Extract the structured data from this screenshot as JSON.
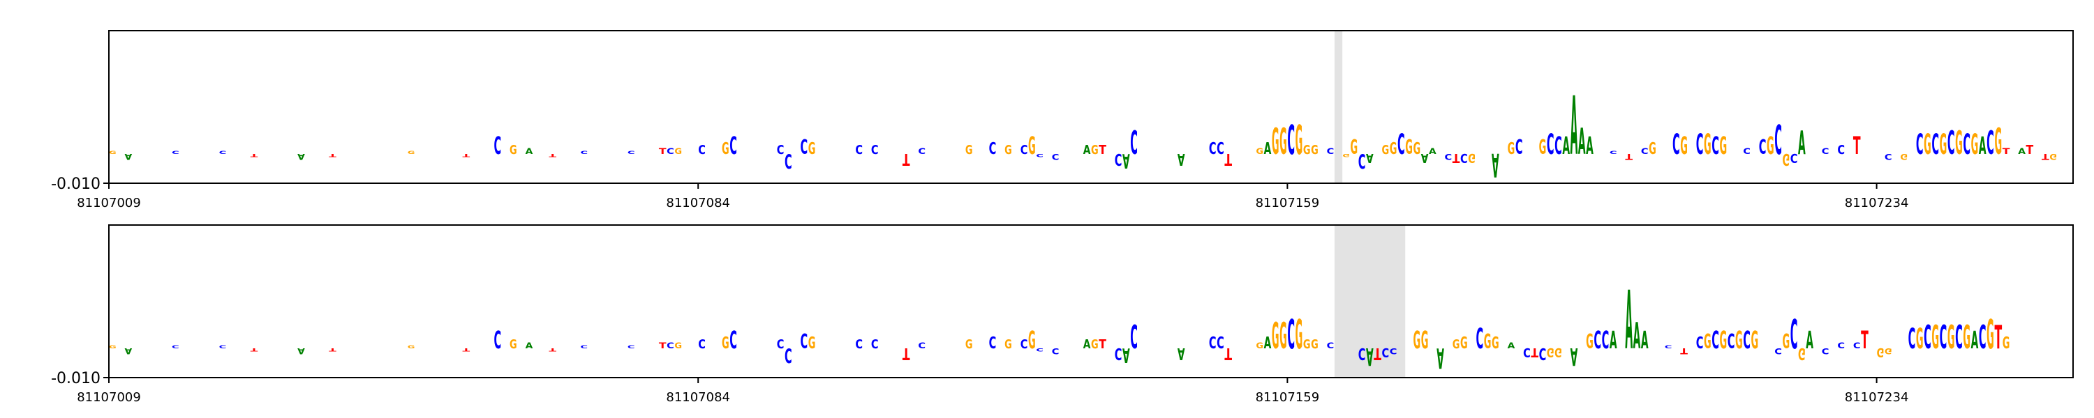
{
  "chart_data": [
    {
      "type": "logo",
      "xlim": [
        81107009,
        81107259
      ],
      "xticks": [
        81107009,
        81107084,
        81107159,
        81107234
      ],
      "ylim": [
        -0.01,
        0.042
      ],
      "yticks": [
        {
          "value": -0.01,
          "label": "-0.010"
        }
      ],
      "highlight": [
        81107165,
        81107166
      ],
      "colors": {
        "A": "#008000",
        "C": "#0000ff",
        "G": "#ffa500",
        "T": "#ff0000"
      },
      "x": [
        81107009,
        81107011,
        81107017,
        81107023,
        81107027,
        81107033,
        81107037,
        81107047,
        81107054,
        81107058,
        81107060,
        81107062,
        81107065,
        81107069,
        81107075,
        81107079,
        81107080,
        81107081,
        81107084,
        81107087,
        81107088,
        81107094,
        81107095,
        81107097,
        81107098,
        81107104,
        81107106,
        81107110,
        81107112,
        81107118,
        81107121,
        81107123,
        81107125,
        81107126,
        81107127,
        81107129,
        81107133,
        81107134,
        81107135,
        81107137,
        81107138,
        81107139,
        81107145,
        81107149,
        81107150,
        81107151,
        81107155,
        81107156,
        81107157,
        81107158,
        81107159,
        81107160,
        81107161,
        81107162,
        81107164,
        81107166,
        81107167,
        81107168,
        81107169,
        81107171,
        81107172,
        81107173,
        81107174,
        81107175,
        81107176,
        81107177,
        81107179,
        81107180,
        81107181,
        81107182,
        81107185,
        81107187,
        81107188,
        81107191,
        81107192,
        81107193,
        81107194,
        81107195,
        81107196,
        81107197,
        81107200,
        81107202,
        81107204,
        81107205,
        81107208,
        81107209,
        81107211,
        81107212,
        81107213,
        81107214,
        81107217,
        81107219,
        81107220,
        81107221,
        81107222,
        81107223,
        81107224,
        81107227,
        81107229,
        81107231,
        81107235,
        81107237,
        81107239,
        81107240,
        81107241,
        81107242,
        81107243,
        81107244,
        81107245,
        81107246,
        81107247,
        81107248,
        81107249,
        81107250,
        81107252,
        81107253,
        81107255,
        81107256
      ],
      "letters": [
        "G",
        "A",
        "C",
        "C",
        "T",
        "A",
        "T",
        "G",
        "T",
        "C",
        "G",
        "A",
        "T",
        "C",
        "C",
        "T",
        "C",
        "G",
        "C",
        "G",
        "C",
        "C",
        "C",
        "C",
        "G",
        "C",
        "C",
        "T",
        "C",
        "G",
        "C",
        "G",
        "C",
        "G",
        "C",
        "C",
        "A",
        "G",
        "T",
        "C",
        "A",
        "C",
        "A",
        "C",
        "C",
        "T",
        "G",
        "A",
        "G",
        "G",
        "C",
        "G",
        "G",
        "G",
        "C",
        "G",
        "G",
        "C",
        "A",
        "G",
        "G",
        "C",
        "G",
        "G",
        "A",
        "A",
        "C",
        "T",
        "C",
        "G",
        "A",
        "G",
        "C",
        "G",
        "C",
        "C",
        "A",
        "A",
        "A",
        "A",
        "C",
        "T",
        "C",
        "G",
        "C",
        "G",
        "C",
        "G",
        "C",
        "G",
        "C",
        "C",
        "G",
        "C",
        "G",
        "C",
        "A",
        "C",
        "C",
        "T",
        "C",
        "G",
        "C",
        "G",
        "C",
        "G",
        "C",
        "G",
        "C",
        "G",
        "A",
        "C",
        "G",
        "T",
        "A",
        "T",
        "T",
        "G"
      ],
      "values": [
        0.001,
        -0.002,
        0.001,
        0.001,
        -0.001,
        -0.002,
        -0.001,
        0.001,
        -0.001,
        0.006,
        0.003,
        0.002,
        -0.001,
        0.001,
        0.001,
        0.002,
        0.002,
        0.002,
        0.003,
        0.004,
        0.006,
        0.003,
        -0.005,
        0.005,
        0.004,
        0.003,
        0.003,
        -0.004,
        0.002,
        0.003,
        0.004,
        0.003,
        0.003,
        0.006,
        -0.001,
        -0.002,
        0.003,
        0.003,
        0.003,
        -0.004,
        -0.005,
        0.008,
        -0.004,
        0.004,
        0.004,
        -0.004,
        0.002,
        0.004,
        0.009,
        0.009,
        0.01,
        0.01,
        0.003,
        0.003,
        0.002,
        -0.001,
        0.005,
        -0.005,
        -0.003,
        0.003,
        0.004,
        0.007,
        0.005,
        0.004,
        -0.003,
        0.002,
        -0.002,
        -0.003,
        -0.003,
        -0.003,
        -0.008,
        0.004,
        0.005,
        0.005,
        0.007,
        0.006,
        0.006,
        0.02,
        0.009,
        0.006,
        0.001,
        -0.002,
        0.002,
        0.004,
        0.007,
        0.006,
        0.007,
        0.007,
        0.006,
        0.006,
        0.002,
        0.005,
        0.006,
        0.01,
        -0.004,
        -0.003,
        0.008,
        0.002,
        0.003,
        0.006,
        -0.002,
        -0.002,
        0.007,
        0.007,
        0.007,
        0.007,
        0.008,
        0.008,
        0.007,
        0.007,
        0.006,
        0.008,
        0.009,
        0.002,
        0.002,
        0.003,
        -0.002,
        -0.002
      ]
    },
    {
      "type": "logo",
      "xlim": [
        81107009,
        81107259
      ],
      "xticks": [
        81107009,
        81107084,
        81107159,
        81107234
      ],
      "ylim": [
        -0.01,
        0.042
      ],
      "yticks": [
        {
          "value": -0.01,
          "label": "-0.010"
        }
      ],
      "highlight": [
        81107165,
        81107174
      ],
      "colors": {
        "A": "#008000",
        "C": "#0000ff",
        "G": "#ffa500",
        "T": "#ff0000"
      },
      "x": [
        81107009,
        81107011,
        81107017,
        81107023,
        81107027,
        81107033,
        81107037,
        81107047,
        81107054,
        81107058,
        81107060,
        81107062,
        81107065,
        81107069,
        81107075,
        81107079,
        81107080,
        81107081,
        81107084,
        81107087,
        81107088,
        81107094,
        81107095,
        81107097,
        81107098,
        81107104,
        81107106,
        81107110,
        81107112,
        81107118,
        81107121,
        81107123,
        81107125,
        81107126,
        81107127,
        81107129,
        81107133,
        81107134,
        81107135,
        81107137,
        81107138,
        81107139,
        81107145,
        81107149,
        81107150,
        81107151,
        81107155,
        81107156,
        81107157,
        81107158,
        81107159,
        81107160,
        81107161,
        81107162,
        81107164,
        81107168,
        81107169,
        81107170,
        81107171,
        81107172,
        81107175,
        81107176,
        81107178,
        81107180,
        81107181,
        81107183,
        81107184,
        81107185,
        81107187,
        81107189,
        81107190,
        81107191,
        81107192,
        81107193,
        81107195,
        81107197,
        81107198,
        81107199,
        81107200,
        81107202,
        81107203,
        81107204,
        81107207,
        81107209,
        81107211,
        81107212,
        81107213,
        81107214,
        81107215,
        81107216,
        81107217,
        81107218,
        81107221,
        81107222,
        81107223,
        81107224,
        81107225,
        81107227,
        81107229,
        81107231,
        81107232,
        81107234,
        81107235,
        81107238,
        81107239,
        81107240,
        81107241,
        81107242,
        81107243,
        81107244,
        81107245,
        81107246,
        81107247,
        81107248,
        81107249,
        81107250
      ],
      "letters": [
        "G",
        "A",
        "C",
        "C",
        "T",
        "A",
        "T",
        "G",
        "T",
        "C",
        "G",
        "A",
        "T",
        "C",
        "C",
        "T",
        "C",
        "G",
        "C",
        "G",
        "C",
        "C",
        "C",
        "C",
        "G",
        "C",
        "C",
        "T",
        "C",
        "G",
        "C",
        "G",
        "C",
        "G",
        "C",
        "C",
        "A",
        "G",
        "T",
        "C",
        "A",
        "C",
        "A",
        "C",
        "C",
        "T",
        "G",
        "A",
        "G",
        "G",
        "C",
        "G",
        "G",
        "G",
        "C",
        "C",
        "A",
        "T",
        "C",
        "C",
        "G",
        "G",
        "A",
        "G",
        "G",
        "C",
        "G",
        "G",
        "A",
        "C",
        "T",
        "C",
        "G",
        "G",
        "A",
        "G",
        "C",
        "C",
        "A",
        "A",
        "A",
        "A",
        "C",
        "T",
        "C",
        "G",
        "C",
        "G",
        "C",
        "G",
        "C",
        "G",
        "C",
        "G",
        "C",
        "G",
        "A",
        "C",
        "C",
        "C",
        "T",
        "G",
        "G",
        "C",
        "G",
        "C",
        "G",
        "C",
        "G",
        "C",
        "G",
        "A",
        "C",
        "G",
        "T",
        "G"
      ],
      "values": [
        0.001,
        -0.002,
        0.001,
        0.001,
        -0.001,
        -0.002,
        -0.001,
        0.001,
        -0.001,
        0.006,
        0.003,
        0.002,
        -0.001,
        0.001,
        0.001,
        0.002,
        0.002,
        0.002,
        0.003,
        0.004,
        0.006,
        0.003,
        -0.005,
        0.005,
        0.004,
        0.003,
        0.003,
        -0.004,
        0.002,
        0.003,
        0.004,
        0.003,
        0.003,
        0.006,
        -0.001,
        -0.002,
        0.003,
        0.003,
        0.003,
        -0.004,
        -0.005,
        0.008,
        -0.004,
        0.004,
        0.004,
        -0.004,
        0.002,
        0.004,
        0.009,
        0.009,
        0.01,
        0.01,
        0.003,
        0.003,
        0.002,
        -0.004,
        -0.006,
        -0.004,
        -0.003,
        -0.002,
        0.006,
        0.006,
        -0.007,
        0.003,
        0.004,
        0.007,
        0.005,
        0.004,
        0.002,
        -0.003,
        -0.003,
        -0.004,
        -0.003,
        -0.003,
        -0.006,
        0.005,
        0.006,
        0.006,
        0.006,
        0.02,
        0.009,
        0.006,
        0.001,
        -0.002,
        0.004,
        0.005,
        0.006,
        0.006,
        0.005,
        0.006,
        0.006,
        0.006,
        -0.002,
        0.005,
        0.01,
        -0.004,
        0.006,
        -0.002,
        0.002,
        0.002,
        0.006,
        -0.003,
        -0.002,
        0.007,
        0.007,
        0.008,
        0.008,
        0.008,
        0.008,
        0.008,
        0.008,
        0.006,
        0.008,
        0.01,
        0.008,
        0.004
      ]
    }
  ]
}
